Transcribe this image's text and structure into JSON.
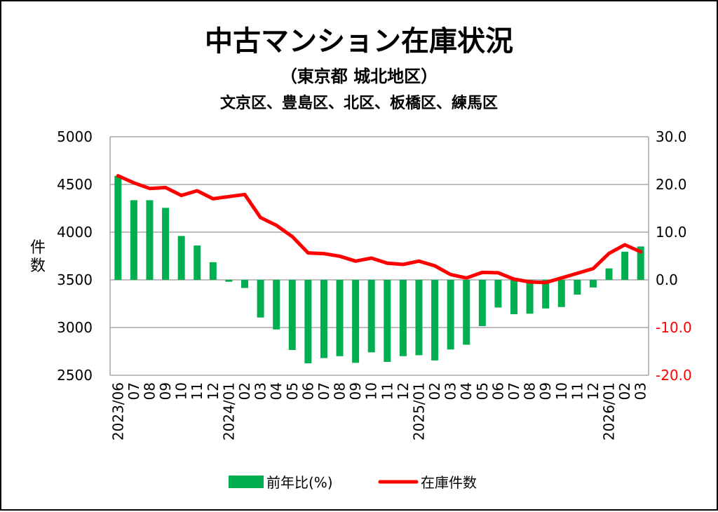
{
  "chart_data": {
    "type": "bar+line",
    "title": "中古マンション在庫状況",
    "subtitle": "（東京都 城北地区）",
    "subtitle2": "文京区、豊島区、北区、板橋区、練馬区",
    "ylabel": "件数",
    "ylim": [
      2500,
      5000
    ],
    "y_ticks": [
      "5000",
      "4500",
      "4000",
      "3500",
      "3000",
      "2500"
    ],
    "y2lim": [
      -20,
      30
    ],
    "y2_ticks": [
      "30.0",
      "20.0",
      "10.0",
      "0.0",
      "-10.0",
      "-20.0"
    ],
    "grid": true,
    "legend_position": "bottom",
    "categories": [
      "2023/06",
      "07",
      "08",
      "09",
      "10",
      "11",
      "12",
      "2024/01",
      "02",
      "03",
      "04",
      "05",
      "06",
      "07",
      "08",
      "09",
      "10",
      "11",
      "12",
      "2025/01",
      "02",
      "03",
      "04",
      "05",
      "06",
      "07",
      "08",
      "09",
      "10",
      "11",
      "12",
      "2026/01",
      "02",
      "03"
    ],
    "series": [
      {
        "name": "前年比(%)",
        "type": "bar",
        "axis": "right",
        "color": "#00B050",
        "values": [
          21.8,
          16.7,
          16.7,
          15.1,
          9.2,
          7.2,
          3.7,
          -0.4,
          -1.7,
          -7.9,
          -10.4,
          -14.7,
          -17.5,
          -16.4,
          -16.0,
          -17.4,
          -15.2,
          -17.2,
          -16.0,
          -15.8,
          -16.9,
          -14.6,
          -13.6,
          -9.7,
          -5.8,
          -7.2,
          -7.1,
          -6.0,
          -5.7,
          -3.1,
          -1.6,
          2.4,
          5.9,
          7.0
        ]
      },
      {
        "name": "在庫件数",
        "type": "line",
        "axis": "left",
        "color": "#FF0000",
        "values": [
          4591,
          4517,
          4458,
          4468,
          4385,
          4434,
          4350,
          4373,
          4395,
          4152,
          4071,
          3954,
          3782,
          3775,
          3748,
          3696,
          3728,
          3674,
          3662,
          3696,
          3647,
          3556,
          3520,
          3578,
          3574,
          3507,
          3478,
          3471,
          3520,
          3569,
          3618,
          3777,
          3868,
          3794
        ]
      }
    ]
  }
}
